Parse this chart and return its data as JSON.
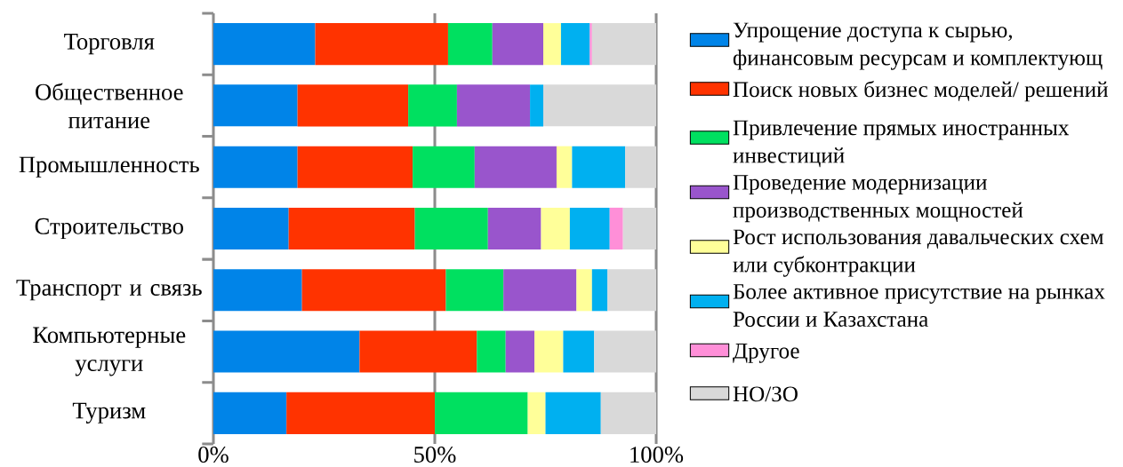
{
  "chart_data": {
    "type": "bar",
    "orientation": "horizontal",
    "stacked": true,
    "categories": [
      "Торговля",
      "Общественное питание",
      "Промышленность",
      "Строительство",
      "Транспорт и связь",
      "Компьютерные услуги",
      "Туризм"
    ],
    "series": [
      {
        "name": "Упрощение доступа к сырью, финансовым ресурсам и комплектующ",
        "color": "#0084e8",
        "values": [
          23,
          19,
          19,
          17,
          20,
          33,
          16.5
        ]
      },
      {
        "name": "Поиск новых бизнес моделей/ решений",
        "color": "#ff3300",
        "values": [
          30,
          25,
          26,
          28.5,
          32.5,
          26.5,
          33.5
        ]
      },
      {
        "name": "Привлечение прямых иностранных инвестиций",
        "color": "#00e060",
        "values": [
          10,
          11,
          14,
          16.5,
          13,
          6.5,
          21
        ]
      },
      {
        "name": "Проведение модернизации производственных мощностей",
        "color": "#9955cc",
        "values": [
          11.5,
          16.5,
          18.5,
          12,
          16.5,
          6.5,
          null
        ]
      },
      {
        "name": "Рост использования давальческих схем или субконтракции",
        "color": "#ffff99",
        "values": [
          4,
          null,
          3.5,
          6.5,
          3.5,
          6.5,
          4
        ]
      },
      {
        "name": "Более активное присутствие на рынках России и Казахстана",
        "color": "#00b0f0",
        "values": [
          6.5,
          3,
          12,
          9,
          3.5,
          7,
          12.5
        ]
      },
      {
        "name": "Другое",
        "color": "#ff8fd8",
        "values": [
          0.5,
          null,
          null,
          3,
          null,
          null,
          null
        ]
      },
      {
        "name": "НО/ЗО",
        "color": "#d9d9d9",
        "values": [
          14.5,
          25.5,
          7,
          7.5,
          11,
          14,
          12.5
        ]
      }
    ],
    "xlim": [
      0,
      100
    ],
    "xticks": [
      {
        "value": 0,
        "label": "0%"
      },
      {
        "value": 50,
        "label": "50%"
      },
      {
        "value": 100,
        "label": "100%"
      }
    ],
    "grid": "x",
    "legend": "right"
  }
}
